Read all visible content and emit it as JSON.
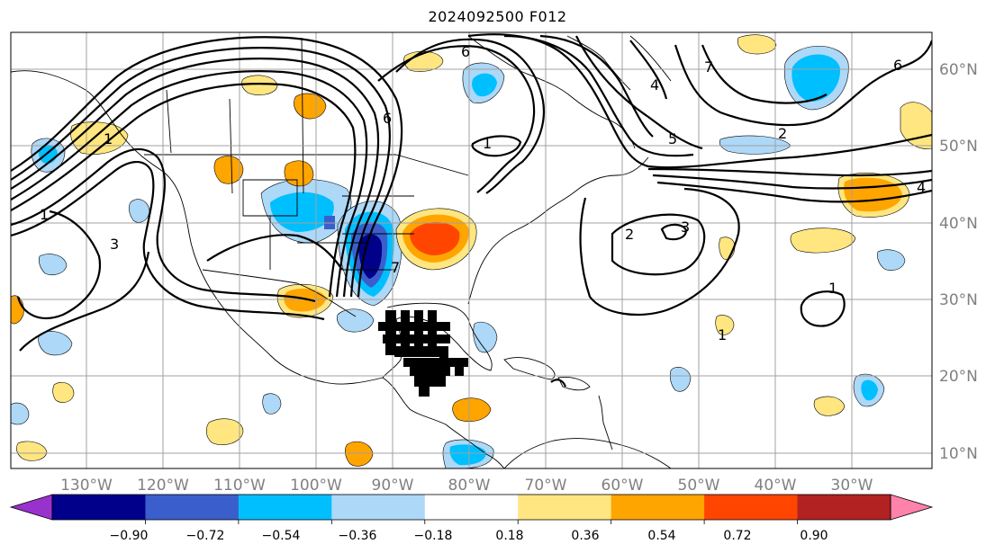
{
  "title": "2024092500 F012",
  "map": {
    "lat_labels": [
      "60°N",
      "50°N",
      "40°N",
      "30°N",
      "20°N",
      "10°N"
    ],
    "lon_labels": [
      "130°W",
      "120°W",
      "110°W",
      "100°W",
      "90°W",
      "80°W",
      "70°W",
      "60°W",
      "50°W",
      "40°W",
      "30°W"
    ],
    "contour_labels": [
      "1",
      "3",
      "1",
      "6",
      "1",
      "6",
      "7",
      "4",
      "5",
      "2",
      "2",
      "3",
      "1",
      "1",
      "4",
      "6",
      "7"
    ]
  },
  "colorbar": {
    "tick_labels": [
      "−0.90",
      "−0.72",
      "−0.54",
      "−0.36",
      "−0.18",
      "0.18",
      "0.36",
      "0.54",
      "0.72",
      "0.90"
    ],
    "colors": [
      "#9932cc",
      "#00008b",
      "#3a5fcd",
      "#00bfff",
      "#add8f7",
      "#ffffff",
      "#ffe680",
      "#ffa500",
      "#ff4500",
      "#b22222",
      "#ff82ab"
    ]
  }
}
